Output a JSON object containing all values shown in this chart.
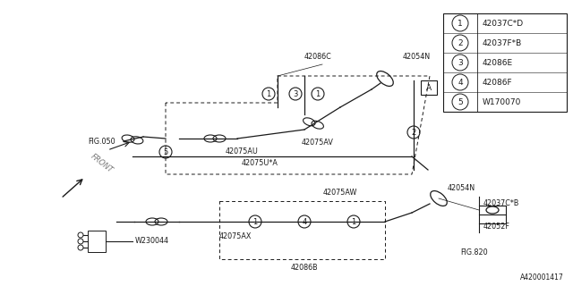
{
  "bg_color": "#ffffff",
  "line_color": "#1a1a1a",
  "part_number": "A420001417",
  "legend": [
    {
      "num": "1",
      "label": "42037C*D"
    },
    {
      "num": "2",
      "label": "42037F*B"
    },
    {
      "num": "3",
      "label": "42086E"
    },
    {
      "num": "4",
      "label": "42086F"
    },
    {
      "num": "5",
      "label": "W170070"
    }
  ],
  "label_fs": 5.8
}
